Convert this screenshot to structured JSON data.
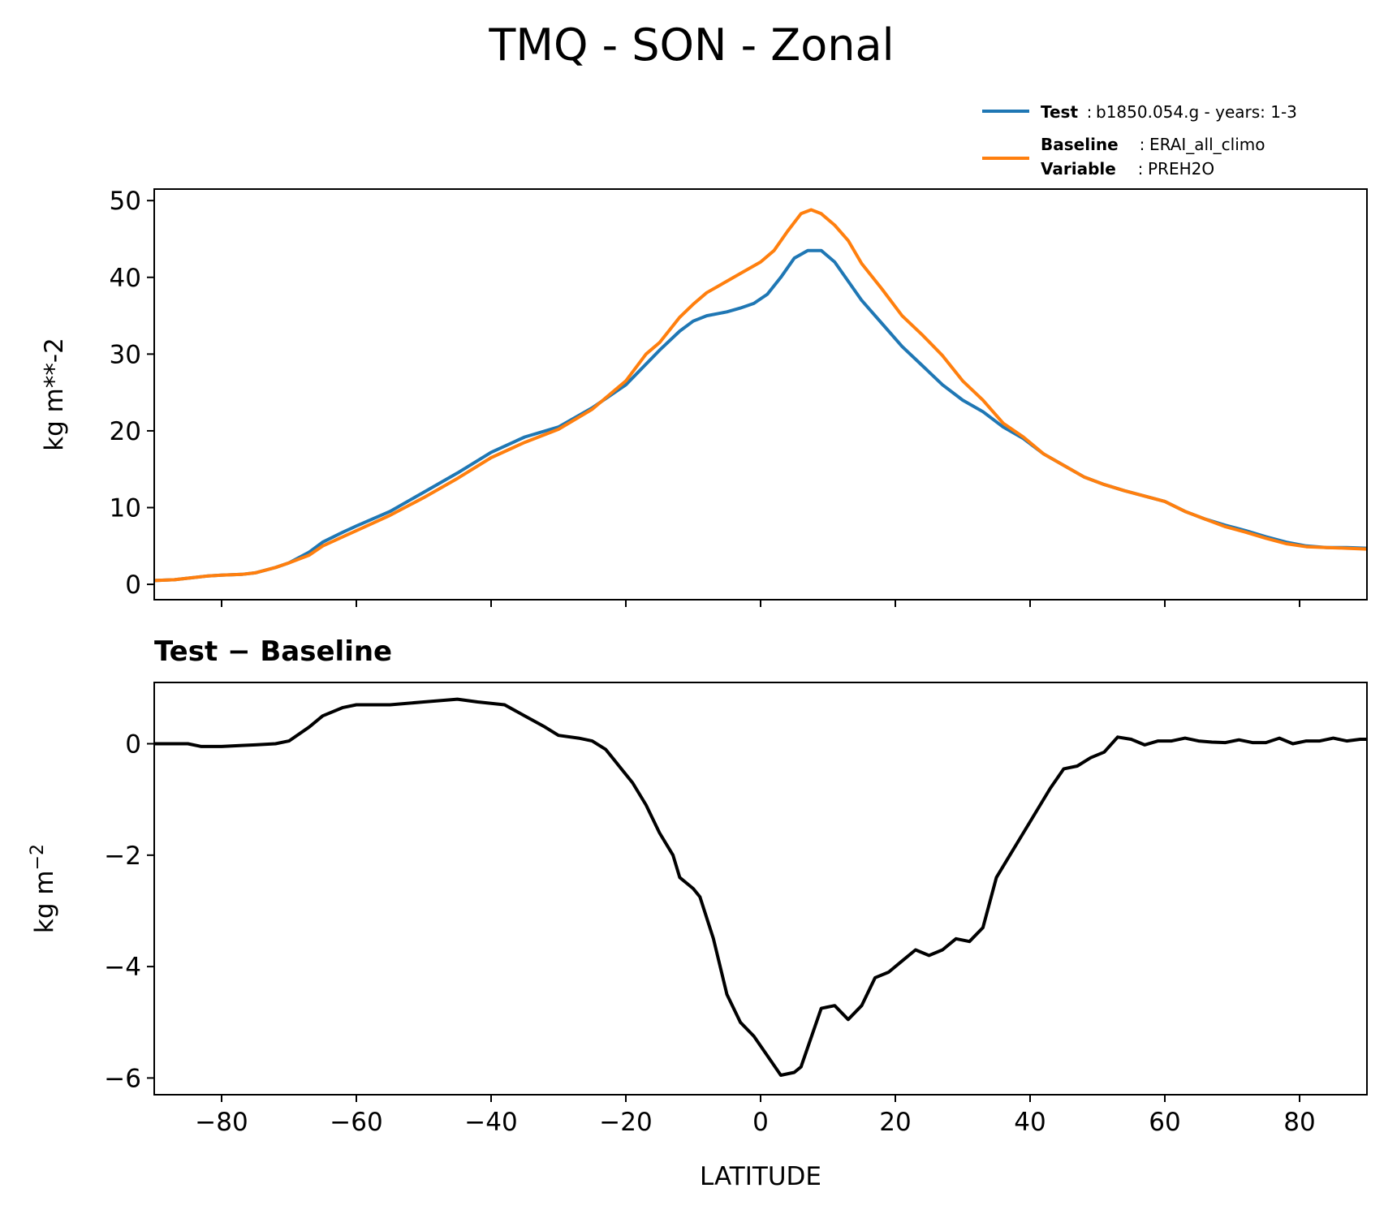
{
  "title": "TMQ - SON - Zonal",
  "legend": {
    "test": {
      "label": "Test",
      "sep": ": ",
      "value": "b1850.054.g - years: 1-3",
      "color": "#1f77b4"
    },
    "baseline": {
      "label": "Baseline",
      "sep": ": ",
      "value": "ERAI_all_climo",
      "color": "#ff7f0e"
    },
    "variable": {
      "label": "Variable",
      "sep": ": ",
      "value": "PREH2O"
    }
  },
  "chart_data": [
    {
      "type": "line",
      "name": "zonal-mean",
      "xlim": [
        -90,
        90
      ],
      "ylim": [
        -2,
        51.5
      ],
      "ylabel": "kg m**-2",
      "yticks": [
        0,
        10,
        20,
        30,
        40,
        50
      ],
      "ytick_labels": [
        "0",
        "10",
        "20",
        "30",
        "40",
        "50"
      ],
      "xticks": [
        -80,
        -60,
        -40,
        -20,
        0,
        20,
        40,
        60,
        80
      ],
      "series": [
        {
          "name": "Test",
          "color": "#1f77b4",
          "points": [
            [
              -90,
              0.5
            ],
            [
              -87,
              0.6
            ],
            [
              -85,
              0.8
            ],
            [
              -82,
              1.1
            ],
            [
              -80,
              1.2
            ],
            [
              -77,
              1.3
            ],
            [
              -75,
              1.5
            ],
            [
              -72,
              2.2
            ],
            [
              -70,
              2.8
            ],
            [
              -67,
              4.2
            ],
            [
              -65,
              5.5
            ],
            [
              -62,
              6.8
            ],
            [
              -60,
              7.6
            ],
            [
              -55,
              9.5
            ],
            [
              -50,
              12
            ],
            [
              -45,
              14.5
            ],
            [
              -40,
              17.2
            ],
            [
              -35,
              19.2
            ],
            [
              -30,
              20.5
            ],
            [
              -25,
              23
            ],
            [
              -20,
              26
            ],
            [
              -15,
              30.5
            ],
            [
              -12,
              33
            ],
            [
              -10,
              34.3
            ],
            [
              -8,
              35
            ],
            [
              -5,
              35.5
            ],
            [
              -3,
              36
            ],
            [
              -1,
              36.6
            ],
            [
              1,
              37.8
            ],
            [
              3,
              40
            ],
            [
              5,
              42.5
            ],
            [
              7,
              43.5
            ],
            [
              9,
              43.5
            ],
            [
              11,
              42
            ],
            [
              13,
              39.5
            ],
            [
              15,
              37
            ],
            [
              18,
              34
            ],
            [
              21,
              31
            ],
            [
              24,
              28.5
            ],
            [
              27,
              26
            ],
            [
              30,
              24
            ],
            [
              33,
              22.5
            ],
            [
              36,
              20.5
            ],
            [
              39,
              19
            ],
            [
              42,
              17
            ],
            [
              45,
              15.5
            ],
            [
              48,
              14
            ],
            [
              51,
              13
            ],
            [
              54,
              12.2
            ],
            [
              57,
              11.5
            ],
            [
              60,
              10.8
            ],
            [
              63,
              9.5
            ],
            [
              66,
              8.5
            ],
            [
              69,
              7.7
            ],
            [
              72,
              7
            ],
            [
              75,
              6.2
            ],
            [
              78,
              5.5
            ],
            [
              81,
              5
            ],
            [
              84,
              4.8
            ],
            [
              87,
              4.8
            ],
            [
              90,
              4.7
            ]
          ]
        },
        {
          "name": "Baseline",
          "color": "#ff7f0e",
          "points": [
            [
              -90,
              0.5
            ],
            [
              -87,
              0.6
            ],
            [
              -85,
              0.8
            ],
            [
              -82,
              1.1
            ],
            [
              -80,
              1.2
            ],
            [
              -77,
              1.3
            ],
            [
              -75,
              1.5
            ],
            [
              -72,
              2.2
            ],
            [
              -70,
              2.8
            ],
            [
              -67,
              3.8
            ],
            [
              -65,
              5
            ],
            [
              -62,
              6.2
            ],
            [
              -60,
              7
            ],
            [
              -55,
              9
            ],
            [
              -50,
              11.3
            ],
            [
              -45,
              13.8
            ],
            [
              -40,
              16.5
            ],
            [
              -35,
              18.5
            ],
            [
              -30,
              20.2
            ],
            [
              -25,
              22.8
            ],
            [
              -20,
              26.5
            ],
            [
              -17,
              30
            ],
            [
              -15,
              31.5
            ],
            [
              -12,
              34.8
            ],
            [
              -10,
              36.5
            ],
            [
              -8,
              38
            ],
            [
              -5,
              39.5
            ],
            [
              -3,
              40.5
            ],
            [
              0,
              42
            ],
            [
              2,
              43.5
            ],
            [
              4,
              46
            ],
            [
              6,
              48.3
            ],
            [
              7.5,
              48.8
            ],
            [
              9,
              48.3
            ],
            [
              11,
              46.8
            ],
            [
              13,
              44.8
            ],
            [
              15,
              41.8
            ],
            [
              18,
              38.5
            ],
            [
              21,
              35
            ],
            [
              24,
              32.5
            ],
            [
              27,
              29.8
            ],
            [
              30,
              26.5
            ],
            [
              33,
              24
            ],
            [
              36,
              21
            ],
            [
              39,
              19.2
            ],
            [
              42,
              17
            ],
            [
              45,
              15.5
            ],
            [
              48,
              14
            ],
            [
              51,
              13
            ],
            [
              54,
              12.2
            ],
            [
              57,
              11.5
            ],
            [
              60,
              10.8
            ],
            [
              63,
              9.5
            ],
            [
              66,
              8.5
            ],
            [
              69,
              7.5
            ],
            [
              72,
              6.8
            ],
            [
              75,
              6
            ],
            [
              78,
              5.3
            ],
            [
              81,
              4.9
            ],
            [
              84,
              4.8
            ],
            [
              87,
              4.7
            ],
            [
              90,
              4.6
            ]
          ]
        }
      ]
    },
    {
      "type": "line",
      "name": "difference",
      "title": "Test − Baseline",
      "xlim": [
        -90,
        90
      ],
      "ylim": [
        -6.3,
        1.1
      ],
      "xlabel": "LATITUDE",
      "ylabel": "kg m",
      "ylabel_superscript": "−2",
      "yticks": [
        0,
        -2,
        -4,
        -6
      ],
      "ytick_labels": [
        "0",
        "−2",
        "−4",
        "−6"
      ],
      "xticks": [
        -80,
        -60,
        -40,
        -20,
        0,
        20,
        40,
        60,
        80
      ],
      "xtick_labels": [
        "−80",
        "−60",
        "−40",
        "−20",
        "0",
        "20",
        "40",
        "60",
        "80"
      ],
      "series": [
        {
          "name": "Test − Baseline",
          "color": "#000000",
          "points": [
            [
              -90,
              0
            ],
            [
              -85,
              0
            ],
            [
              -83,
              -0.05
            ],
            [
              -80,
              -0.05
            ],
            [
              -77,
              -0.03
            ],
            [
              -75,
              -0.02
            ],
            [
              -72,
              0
            ],
            [
              -70,
              0.05
            ],
            [
              -67,
              0.3
            ],
            [
              -65,
              0.5
            ],
            [
              -62,
              0.65
            ],
            [
              -60,
              0.7
            ],
            [
              -55,
              0.7
            ],
            [
              -50,
              0.75
            ],
            [
              -45,
              0.8
            ],
            [
              -42,
              0.75
            ],
            [
              -38,
              0.7
            ],
            [
              -35,
              0.5
            ],
            [
              -32,
              0.3
            ],
            [
              -30,
              0.15
            ],
            [
              -27,
              0.1
            ],
            [
              -25,
              0.05
            ],
            [
              -23,
              -0.1
            ],
            [
              -21,
              -0.4
            ],
            [
              -19,
              -0.7
            ],
            [
              -17,
              -1.1
            ],
            [
              -15,
              -1.6
            ],
            [
              -13,
              -2
            ],
            [
              -12,
              -2.4
            ],
            [
              -10,
              -2.6
            ],
            [
              -9,
              -2.75
            ],
            [
              -7,
              -3.5
            ],
            [
              -5,
              -4.5
            ],
            [
              -3,
              -5
            ],
            [
              -1,
              -5.25
            ],
            [
              1,
              -5.6
            ],
            [
              3,
              -5.95
            ],
            [
              5,
              -5.9
            ],
            [
              6,
              -5.8
            ],
            [
              9,
              -4.75
            ],
            [
              11,
              -4.7
            ],
            [
              13,
              -4.95
            ],
            [
              15,
              -4.7
            ],
            [
              17,
              -4.2
            ],
            [
              19,
              -4.1
            ],
            [
              21,
              -3.9
            ],
            [
              23,
              -3.7
            ],
            [
              25,
              -3.8
            ],
            [
              27,
              -3.7
            ],
            [
              29,
              -3.5
            ],
            [
              31,
              -3.55
            ],
            [
              33,
              -3.3
            ],
            [
              35,
              -2.4
            ],
            [
              37,
              -2
            ],
            [
              39,
              -1.6
            ],
            [
              41,
              -1.2
            ],
            [
              43,
              -0.8
            ],
            [
              45,
              -0.45
            ],
            [
              47,
              -0.4
            ],
            [
              49,
              -0.25
            ],
            [
              51,
              -0.15
            ],
            [
              53,
              0.12
            ],
            [
              55,
              0.08
            ],
            [
              57,
              -0.02
            ],
            [
              59,
              0.05
            ],
            [
              61,
              0.05
            ],
            [
              63,
              0.1
            ],
            [
              65,
              0.05
            ],
            [
              67,
              0.03
            ],
            [
              69,
              0.02
            ],
            [
              71,
              0.07
            ],
            [
              73,
              0.02
            ],
            [
              75,
              0.02
            ],
            [
              77,
              0.1
            ],
            [
              79,
              0
            ],
            [
              81,
              0.05
            ],
            [
              83,
              0.05
            ],
            [
              85,
              0.1
            ],
            [
              87,
              0.05
            ],
            [
              89,
              0.08
            ],
            [
              90,
              0.08
            ]
          ]
        }
      ]
    }
  ]
}
